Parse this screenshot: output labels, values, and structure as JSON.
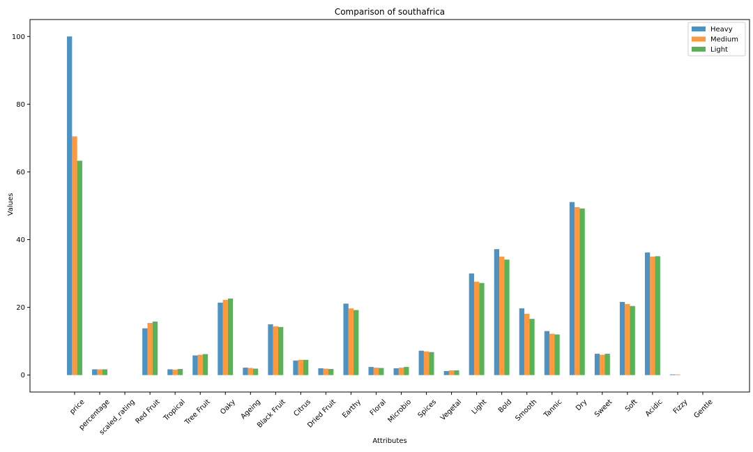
{
  "chart_data": {
    "type": "bar",
    "title": "Comparison of southafrica",
    "xlabel": "Attributes",
    "ylabel": "Values",
    "ylim": [
      -5,
      105
    ],
    "yticks": [
      0,
      20,
      40,
      60,
      80,
      100
    ],
    "grid": false,
    "legend_position": "top-right",
    "categories": [
      "price",
      "percentage",
      "scaled_rating",
      "Red Fruit",
      "Tropical",
      "Tree Fruit",
      "Oaky",
      "Ageing",
      "Black Fruit",
      "Citrus",
      "Dried Fruit",
      "Earthy",
      "Floral",
      "Microbio",
      "Spices",
      "Vegetal",
      "Light",
      "Bold",
      "Smooth",
      "Tannic",
      "Dry",
      "Sweet",
      "Soft",
      "Acidic",
      "Fizzy",
      "Gentle"
    ],
    "series": [
      {
        "name": "Heavy",
        "color": "#1f77b4",
        "values": [
          100,
          1.7,
          0,
          13.8,
          1.7,
          5.8,
          21.4,
          2.2,
          15.0,
          4.3,
          2.0,
          21.1,
          2.4,
          2.0,
          7.2,
          1.2,
          30.0,
          37.2,
          19.7,
          13.0,
          51.1,
          6.3,
          21.6,
          36.2,
          0.2,
          0
        ]
      },
      {
        "name": "Medium",
        "color": "#ff7f0e",
        "values": [
          70.5,
          1.7,
          0,
          15.4,
          1.6,
          6.0,
          22.2,
          2.1,
          14.4,
          4.5,
          1.9,
          19.7,
          2.2,
          2.2,
          7.0,
          1.4,
          27.6,
          35.0,
          18.1,
          12.2,
          49.6,
          6.0,
          21.0,
          35.0,
          0.2,
          0
        ]
      },
      {
        "name": "Light",
        "color": "#2ca02c",
        "values": [
          63.3,
          1.7,
          0,
          15.8,
          1.8,
          6.2,
          22.6,
          1.9,
          14.2,
          4.5,
          1.8,
          19.2,
          2.1,
          2.4,
          6.8,
          1.4,
          27.2,
          34.1,
          16.6,
          12.0,
          49.2,
          6.3,
          20.4,
          35.1,
          0,
          0
        ]
      }
    ]
  }
}
